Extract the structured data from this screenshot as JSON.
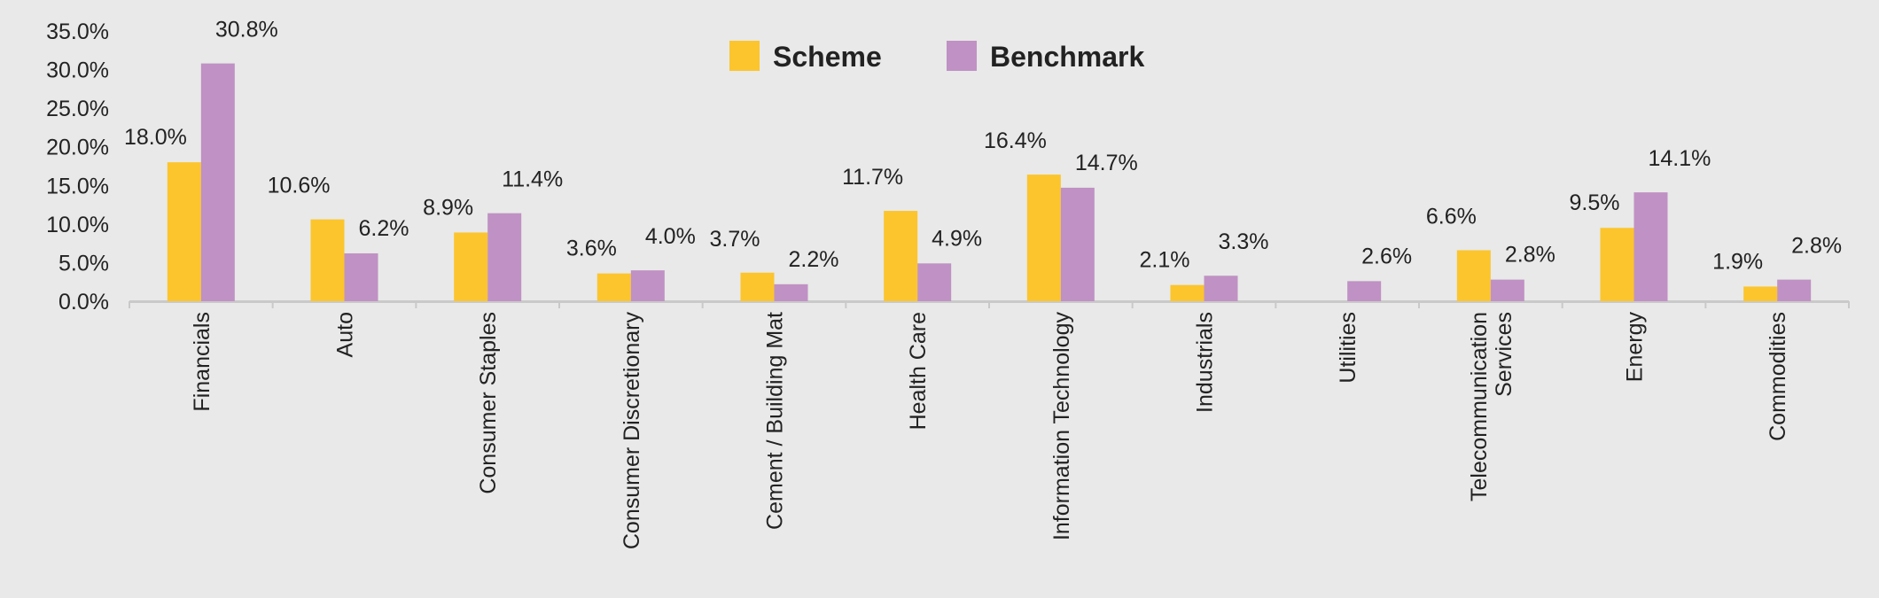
{
  "chart_data": {
    "type": "bar",
    "title": "",
    "xlabel": "",
    "ylabel": "",
    "ylim": [
      0,
      35
    ],
    "yticks": [
      "0.0%",
      "5.0%",
      "10.0%",
      "15.0%",
      "20.0%",
      "25.0%",
      "30.0%",
      "35.0%"
    ],
    "grid": false,
    "legend_position": "top-center",
    "categories": [
      "Financials",
      "Auto",
      "Consumer Staples",
      "Consumer Discretionary",
      "Cement / Building Mat",
      "Health Care",
      "Information Technology",
      "Industrials",
      "Utilities",
      "Telecommunication Services",
      "Energy",
      "Commodities"
    ],
    "series": [
      {
        "name": "Scheme",
        "color": "#fcc52d",
        "values": [
          18.0,
          10.6,
          8.9,
          3.6,
          3.7,
          11.7,
          16.4,
          2.1,
          null,
          6.6,
          9.5,
          1.9
        ],
        "labels": [
          "18.0%",
          "10.6%",
          "8.9%",
          "3.6%",
          "3.7%",
          "11.7%",
          "16.4%",
          "2.1%",
          "",
          "6.6%",
          "9.5%",
          "1.9%"
        ]
      },
      {
        "name": "Benchmark",
        "color": "#c091c4",
        "values": [
          30.8,
          6.2,
          11.4,
          4.0,
          2.2,
          4.9,
          14.7,
          3.3,
          2.6,
          2.8,
          14.1,
          2.8
        ],
        "labels": [
          "30.8%",
          "6.2%",
          "11.4%",
          "4.0%",
          "2.2%",
          "4.9%",
          "14.7%",
          "3.3%",
          "2.6%",
          "2.8%",
          "14.1%",
          "2.8%"
        ]
      }
    ]
  }
}
